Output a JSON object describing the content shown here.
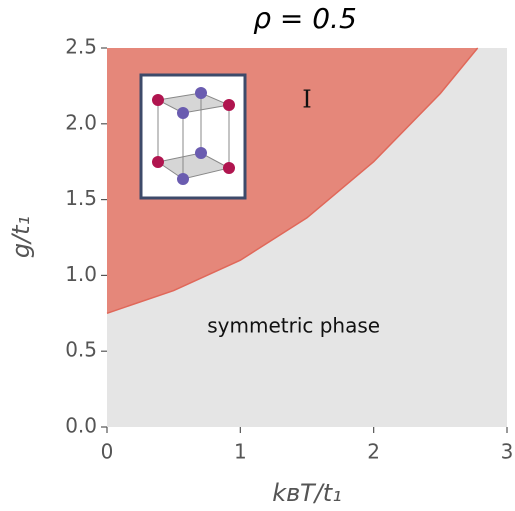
{
  "chart_data": {
    "type": "area",
    "title": "ρ = 0.5",
    "x_label": "kʙT/t₁",
    "y_label": "g/t₁",
    "xlim": [
      0,
      3
    ],
    "ylim": [
      0,
      2.5
    ],
    "xticks": [
      0,
      1,
      2,
      3
    ],
    "yticks": [
      {
        "value": 0,
        "label": "0.0"
      },
      {
        "value": 0.5,
        "label": "0.5"
      },
      {
        "value": 1,
        "label": "1.0"
      },
      {
        "value": 1.5,
        "label": "1.5"
      },
      {
        "value": 2,
        "label": "2.0"
      },
      {
        "value": 2.5,
        "label": "2.5"
      }
    ],
    "boundary": {
      "x": [
        0,
        0.5,
        1.0,
        1.5,
        2.0,
        2.5,
        2.78
      ],
      "y": [
        0.75,
        0.9,
        1.1,
        1.38,
        1.75,
        2.2,
        2.5
      ],
      "color": "#e0685a"
    },
    "fill_above": "#e5877a",
    "fill_below": "#e5e5e5",
    "annotations": [
      {
        "text": "I",
        "x": 1.5,
        "y": 2.15
      },
      {
        "text": "symmetric phase",
        "x": 1.4,
        "y": 0.66
      }
    ]
  }
}
